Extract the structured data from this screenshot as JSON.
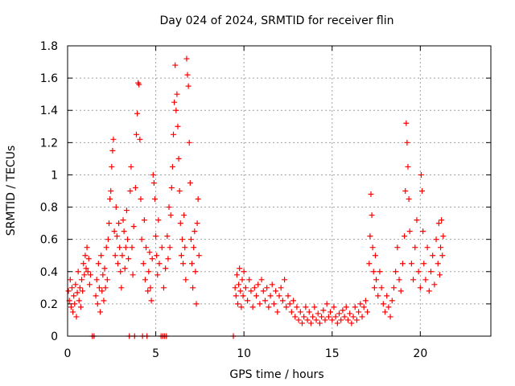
{
  "chart_data": {
    "type": "scatter",
    "title": "Day 024 of 2024, SRMTID for receiver flin",
    "xlabel": "GPS time / hours",
    "ylabel": "SRMTID / TECUs",
    "xlim": [
      0,
      24
    ],
    "ylim": [
      0,
      1.8
    ],
    "xticks": [
      0,
      5,
      10,
      15,
      20
    ],
    "yticks": [
      0,
      0.2,
      0.4,
      0.6,
      0.8,
      1,
      1.2,
      1.4,
      1.6,
      1.8
    ],
    "xtick_labels": [
      "0",
      "5",
      "10",
      "15",
      "20"
    ],
    "ytick_labels": [
      "0",
      "0.2",
      "0.4",
      "0.6",
      "0.8",
      "1",
      "1.2",
      "1.4",
      "1.6",
      "1.8"
    ],
    "grid": true,
    "marker": "+",
    "color": "#ff0000",
    "series": [
      {
        "name": "SRMTID",
        "points": [
          [
            0.05,
            0.28
          ],
          [
            0.1,
            0.22
          ],
          [
            0.15,
            0.35
          ],
          [
            0.2,
            0.18
          ],
          [
            0.25,
            0.3
          ],
          [
            0.3,
            0.15
          ],
          [
            0.35,
            0.25
          ],
          [
            0.4,
            0.2
          ],
          [
            0.45,
            0.32
          ],
          [
            0.5,
            0.12
          ],
          [
            0.55,
            0.27
          ],
          [
            0.6,
            0.4
          ],
          [
            0.65,
            0.22
          ],
          [
            0.7,
            0.3
          ],
          [
            0.75,
            0.18
          ],
          [
            0.8,
            0.35
          ],
          [
            0.85,
            0.28
          ],
          [
            0.9,
            0.45
          ],
          [
            0.95,
            0.38
          ],
          [
            1.0,
            0.5
          ],
          [
            1.05,
            0.42
          ],
          [
            1.1,
            0.55
          ],
          [
            1.15,
            0.4
          ],
          [
            1.2,
            0.48
          ],
          [
            1.25,
            0.32
          ],
          [
            1.3,
            0.38
          ],
          [
            1.4,
            0.0
          ],
          [
            1.5,
            0.0
          ],
          [
            1.6,
            0.25
          ],
          [
            1.65,
            0.35
          ],
          [
            1.7,
            0.2
          ],
          [
            1.75,
            0.45
          ],
          [
            1.8,
            0.3
          ],
          [
            1.85,
            0.15
          ],
          [
            1.9,
            0.5
          ],
          [
            1.95,
            0.28
          ],
          [
            2.0,
            0.38
          ],
          [
            2.05,
            0.22
          ],
          [
            2.1,
            0.42
          ],
          [
            2.15,
            0.3
          ],
          [
            2.2,
            0.55
          ],
          [
            2.25,
            0.35
          ],
          [
            2.3,
            0.6
          ],
          [
            2.35,
            0.7
          ],
          [
            2.4,
            0.85
          ],
          [
            2.45,
            0.9
          ],
          [
            2.5,
            1.05
          ],
          [
            2.55,
            1.15
          ],
          [
            2.6,
            1.22
          ],
          [
            2.65,
            0.65
          ],
          [
            2.7,
            0.5
          ],
          [
            2.75,
            0.8
          ],
          [
            2.8,
            0.62
          ],
          [
            2.85,
            0.45
          ],
          [
            2.9,
            0.7
          ],
          [
            2.95,
            0.55
          ],
          [
            3.0,
            0.4
          ],
          [
            3.05,
            0.3
          ],
          [
            3.1,
            0.5
          ],
          [
            3.15,
            0.72
          ],
          [
            3.2,
            0.65
          ],
          [
            3.25,
            0.42
          ],
          [
            3.3,
            0.55
          ],
          [
            3.35,
            0.78
          ],
          [
            3.4,
            0.6
          ],
          [
            3.45,
            0.48
          ],
          [
            3.5,
            0.0
          ],
          [
            3.55,
            0.9
          ],
          [
            3.6,
            1.05
          ],
          [
            3.65,
            0.55
          ],
          [
            3.7,
            0.38
          ],
          [
            3.75,
            0.68
          ],
          [
            3.8,
            0.0
          ],
          [
            3.85,
            0.92
          ],
          [
            3.9,
            1.25
          ],
          [
            3.95,
            1.38
          ],
          [
            4.0,
            1.57
          ],
          [
            4.05,
            1.56
          ],
          [
            4.1,
            1.22
          ],
          [
            4.15,
            0.85
          ],
          [
            4.2,
            0.6
          ],
          [
            4.25,
            0.0
          ],
          [
            4.3,
            0.45
          ],
          [
            4.35,
            0.72
          ],
          [
            4.4,
            0.35
          ],
          [
            4.45,
            0.55
          ],
          [
            4.5,
            0.0
          ],
          [
            4.55,
            0.28
          ],
          [
            4.6,
            0.4
          ],
          [
            4.65,
            0.52
          ],
          [
            4.7,
            0.3
          ],
          [
            4.75,
            0.22
          ],
          [
            4.8,
            0.48
          ],
          [
            4.85,
            1.0
          ],
          [
            4.9,
            0.95
          ],
          [
            4.95,
            0.85
          ],
          [
            5.0,
            0.62
          ],
          [
            5.05,
            0.5
          ],
          [
            5.1,
            0.38
          ],
          [
            5.15,
            0.72
          ],
          [
            5.2,
            0.45
          ],
          [
            5.3,
            0.0
          ],
          [
            5.35,
            0.55
          ],
          [
            5.4,
            0.0
          ],
          [
            5.45,
            0.3
          ],
          [
            5.5,
            0.0
          ],
          [
            5.55,
            0.42
          ],
          [
            5.6,
            0.0
          ],
          [
            5.65,
            0.62
          ],
          [
            5.7,
            0.48
          ],
          [
            5.75,
            0.8
          ],
          [
            5.8,
            0.55
          ],
          [
            5.85,
            0.75
          ],
          [
            5.9,
            0.92
          ],
          [
            5.95,
            1.05
          ],
          [
            6.0,
            1.25
          ],
          [
            6.05,
            1.45
          ],
          [
            6.1,
            1.68
          ],
          [
            6.15,
            1.4
          ],
          [
            6.2,
            1.5
          ],
          [
            6.25,
            1.3
          ],
          [
            6.3,
            1.1
          ],
          [
            6.35,
            0.9
          ],
          [
            6.4,
            0.7
          ],
          [
            6.45,
            0.5
          ],
          [
            6.5,
            0.6
          ],
          [
            6.55,
            0.45
          ],
          [
            6.6,
            0.75
          ],
          [
            6.65,
            0.55
          ],
          [
            6.7,
            0.35
          ],
          [
            6.75,
            1.72
          ],
          [
            6.8,
            1.62
          ],
          [
            6.85,
            1.55
          ],
          [
            6.9,
            1.2
          ],
          [
            6.95,
            0.95
          ],
          [
            7.0,
            0.6
          ],
          [
            7.05,
            0.45
          ],
          [
            7.1,
            0.3
          ],
          [
            7.15,
            0.55
          ],
          [
            7.2,
            0.65
          ],
          [
            7.25,
            0.4
          ],
          [
            7.3,
            0.2
          ],
          [
            7.35,
            0.7
          ],
          [
            7.4,
            0.85
          ],
          [
            7.45,
            0.5
          ],
          [
            9.4,
            0.0
          ],
          [
            9.5,
            0.3
          ],
          [
            9.55,
            0.25
          ],
          [
            9.6,
            0.38
          ],
          [
            9.65,
            0.2
          ],
          [
            9.7,
            0.32
          ],
          [
            9.75,
            0.42
          ],
          [
            9.8,
            0.28
          ],
          [
            9.85,
            0.18
          ],
          [
            9.9,
            0.35
          ],
          [
            9.95,
            0.25
          ],
          [
            10.0,
            0.4
          ],
          [
            10.1,
            0.3
          ],
          [
            10.2,
            0.22
          ],
          [
            10.3,
            0.35
          ],
          [
            10.4,
            0.28
          ],
          [
            10.5,
            0.18
          ],
          [
            10.6,
            0.3
          ],
          [
            10.7,
            0.25
          ],
          [
            10.8,
            0.32
          ],
          [
            10.9,
            0.2
          ],
          [
            11.0,
            0.35
          ],
          [
            11.1,
            0.28
          ],
          [
            11.2,
            0.22
          ],
          [
            11.3,
            0.3
          ],
          [
            11.4,
            0.18
          ],
          [
            11.5,
            0.25
          ],
          [
            11.6,
            0.32
          ],
          [
            11.7,
            0.2
          ],
          [
            11.8,
            0.28
          ],
          [
            11.9,
            0.15
          ],
          [
            12.0,
            0.25
          ],
          [
            12.1,
            0.3
          ],
          [
            12.2,
            0.22
          ],
          [
            12.3,
            0.35
          ],
          [
            12.4,
            0.18
          ],
          [
            12.5,
            0.25
          ],
          [
            12.6,
            0.2
          ],
          [
            12.7,
            0.15
          ],
          [
            12.8,
            0.22
          ],
          [
            12.9,
            0.12
          ],
          [
            13.0,
            0.18
          ],
          [
            13.1,
            0.1
          ],
          [
            13.2,
            0.15
          ],
          [
            13.3,
            0.08
          ],
          [
            13.4,
            0.12
          ],
          [
            13.5,
            0.18
          ],
          [
            13.6,
            0.1
          ],
          [
            13.7,
            0.15
          ],
          [
            13.8,
            0.08
          ],
          [
            13.9,
            0.12
          ],
          [
            14.0,
            0.18
          ],
          [
            14.1,
            0.1
          ],
          [
            14.2,
            0.14
          ],
          [
            14.3,
            0.08
          ],
          [
            14.4,
            0.12
          ],
          [
            14.5,
            0.16
          ],
          [
            14.6,
            0.1
          ],
          [
            14.7,
            0.2
          ],
          [
            14.8,
            0.12
          ],
          [
            14.9,
            0.15
          ],
          [
            15.0,
            0.1
          ],
          [
            15.1,
            0.18
          ],
          [
            15.2,
            0.12
          ],
          [
            15.3,
            0.08
          ],
          [
            15.4,
            0.14
          ],
          [
            15.5,
            0.1
          ],
          [
            15.6,
            0.16
          ],
          [
            15.7,
            0.12
          ],
          [
            15.8,
            0.18
          ],
          [
            15.9,
            0.1
          ],
          [
            16.0,
            0.14
          ],
          [
            16.1,
            0.08
          ],
          [
            16.2,
            0.12
          ],
          [
            16.3,
            0.18
          ],
          [
            16.4,
            0.1
          ],
          [
            16.5,
            0.15
          ],
          [
            16.6,
            0.2
          ],
          [
            16.7,
            0.12
          ],
          [
            16.8,
            0.18
          ],
          [
            16.9,
            0.22
          ],
          [
            17.0,
            0.15
          ],
          [
            17.1,
            0.45
          ],
          [
            17.15,
            0.62
          ],
          [
            17.2,
            0.88
          ],
          [
            17.25,
            0.75
          ],
          [
            17.3,
            0.55
          ],
          [
            17.35,
            0.4
          ],
          [
            17.4,
            0.3
          ],
          [
            17.45,
            0.5
          ],
          [
            17.5,
            0.35
          ],
          [
            17.6,
            0.25
          ],
          [
            17.7,
            0.4
          ],
          [
            17.8,
            0.3
          ],
          [
            17.9,
            0.2
          ],
          [
            18.0,
            0.15
          ],
          [
            18.1,
            0.25
          ],
          [
            18.2,
            0.18
          ],
          [
            18.3,
            0.12
          ],
          [
            18.4,
            0.22
          ],
          [
            18.5,
            0.3
          ],
          [
            18.6,
            0.4
          ],
          [
            18.7,
            0.55
          ],
          [
            18.8,
            0.35
          ],
          [
            18.9,
            0.28
          ],
          [
            19.0,
            0.45
          ],
          [
            19.1,
            0.62
          ],
          [
            19.15,
            0.9
          ],
          [
            19.2,
            1.32
          ],
          [
            19.25,
            1.2
          ],
          [
            19.3,
            1.05
          ],
          [
            19.35,
            0.85
          ],
          [
            19.4,
            0.65
          ],
          [
            19.5,
            0.45
          ],
          [
            19.6,
            0.35
          ],
          [
            19.7,
            0.55
          ],
          [
            19.8,
            0.72
          ],
          [
            19.9,
            0.4
          ],
          [
            20.0,
            0.3
          ],
          [
            20.05,
            1.0
          ],
          [
            20.1,
            0.9
          ],
          [
            20.15,
            0.65
          ],
          [
            20.2,
            0.45
          ],
          [
            20.3,
            0.35
          ],
          [
            20.4,
            0.55
          ],
          [
            20.5,
            0.28
          ],
          [
            20.6,
            0.4
          ],
          [
            20.7,
            0.5
          ],
          [
            20.8,
            0.32
          ],
          [
            20.9,
            0.6
          ],
          [
            21.0,
            0.45
          ],
          [
            21.05,
            0.7
          ],
          [
            21.1,
            0.38
          ],
          [
            21.15,
            0.55
          ],
          [
            21.2,
            0.72
          ],
          [
            21.25,
            0.5
          ],
          [
            21.3,
            0.62
          ]
        ]
      }
    ]
  }
}
